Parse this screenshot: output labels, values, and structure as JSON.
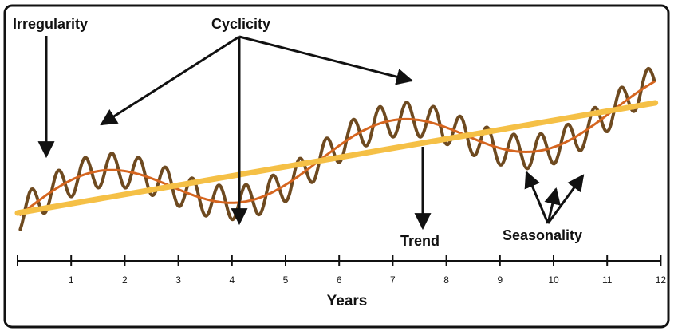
{
  "labels": {
    "irregularity": "Irregularity",
    "cyclicity": "Cyclicity",
    "trend": "Trend",
    "seasonality": "Seasonality"
  },
  "axis": {
    "title": "Years",
    "ticks": [
      "1",
      "2",
      "3",
      "4",
      "5",
      "6",
      "7",
      "8",
      "9",
      "10",
      "11",
      "12"
    ]
  },
  "colors": {
    "trend": "#f5c046",
    "cycle": "#d5651f",
    "series": "#6e4a20",
    "ink": "#111111",
    "frame": "#111111"
  },
  "model": {
    "years_range": [
      0,
      12
    ],
    "seasons_per_year": 2,
    "cycle_period_years": 5.5
  }
}
